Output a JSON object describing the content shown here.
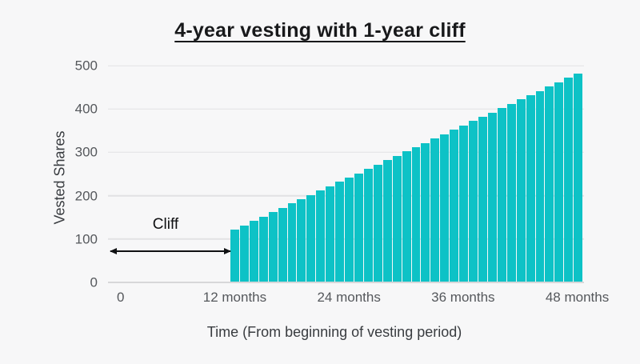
{
  "page": {
    "background_color": "#f7f7f8"
  },
  "chart_data": {
    "type": "bar",
    "title": "4-year vesting with 1-year cliff",
    "xlabel": "Time (From beginning of vesting period)",
    "ylabel": "Vested Shares",
    "bar_color": "#0dc2c6",
    "grid": "horizontal",
    "legend": "none",
    "ylim": [
      0,
      500
    ],
    "yticks": [
      0,
      100,
      200,
      300,
      400,
      500
    ],
    "xticks": [
      {
        "month": 0,
        "label": "0"
      },
      {
        "month": 12,
        "label": "12 months"
      },
      {
        "month": 24,
        "label": "24 months"
      },
      {
        "month": 36,
        "label": "36 months"
      },
      {
        "month": 48,
        "label": "48 months"
      }
    ],
    "x_months": [
      12,
      13,
      14,
      15,
      16,
      17,
      18,
      19,
      20,
      21,
      22,
      23,
      24,
      25,
      26,
      27,
      28,
      29,
      30,
      31,
      32,
      33,
      34,
      35,
      36,
      37,
      38,
      39,
      40,
      41,
      42,
      43,
      44,
      45,
      46,
      47,
      48
    ],
    "values": [
      120,
      130,
      140,
      150,
      160,
      170,
      180,
      190,
      200,
      210,
      220,
      230,
      240,
      250,
      260,
      270,
      280,
      290,
      300,
      310,
      320,
      330,
      340,
      350,
      360,
      370,
      380,
      390,
      400,
      410,
      420,
      430,
      440,
      450,
      460,
      470,
      480
    ],
    "annotation": {
      "text": "Cliff",
      "shape": "double-headed-arrow",
      "from_month": 0,
      "to_month": 12,
      "y_value": 70
    }
  }
}
